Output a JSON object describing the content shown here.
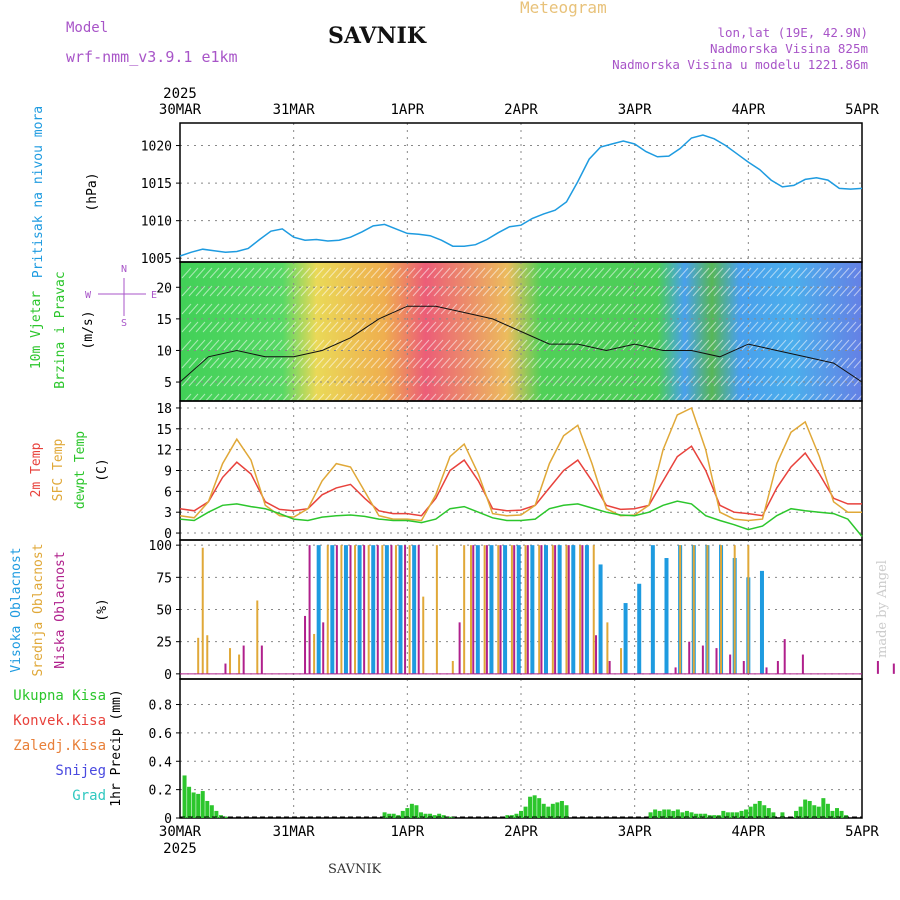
{
  "header": {
    "product": "Meteogram",
    "station": "SAVNIK",
    "model_label": "Model",
    "model_name": "wrf-nmm_v3.9.1 e1km",
    "lonlat": "lon,lat (19E, 42.9N)",
    "elevation": "Nadmorska Visina 825m",
    "elevation_model": "Nadmorska Visina u modelu 1221.86m",
    "credit": "made by Angel",
    "footer": "SAVNIK"
  },
  "time_axis": {
    "year": "2025",
    "labels": [
      "30MAR",
      "31MAR",
      "1APR",
      "2APR",
      "3APR",
      "4APR",
      "5APR"
    ]
  },
  "colors": {
    "pressure": "#1e9be0",
    "t2m": "#e8423c",
    "sfc": "#e0a838",
    "dewpt": "#2cc62c",
    "high_cloud": "#1e9be0",
    "mid_cloud": "#e0a838",
    "low_cloud": "#b0208c",
    "precip": "#2cc62c"
  },
  "chart_data": [
    {
      "type": "line",
      "name": "pressure",
      "labels": [
        "Pritisak na nivou mora",
        "(hPa)"
      ],
      "ylim": [
        1004.5,
        1023
      ],
      "yticks": [
        1005,
        1010,
        1015,
        1020
      ],
      "x": [
        0,
        0.1,
        0.2,
        0.3,
        0.4,
        0.5,
        0.6,
        0.7,
        0.8,
        0.9,
        1.0,
        1.1,
        1.2,
        1.3,
        1.4,
        1.5,
        1.6,
        1.7,
        1.8,
        1.9,
        2.0,
        2.1,
        2.2,
        2.3,
        2.4,
        2.5,
        2.6,
        2.7,
        2.8,
        2.9,
        3.0,
        3.1,
        3.2,
        3.3,
        3.4,
        3.5,
        3.6,
        3.7,
        3.8,
        3.9,
        4.0,
        4.1,
        4.2,
        4.3,
        4.4,
        4.5,
        4.6,
        4.7,
        4.8,
        4.9,
        5.0,
        5.1,
        5.2,
        5.3,
        5.4,
        5.5,
        5.6,
        5.7,
        5.8,
        5.9,
        6.0
      ],
      "values": [
        1005.3,
        1005.8,
        1006.2,
        1006.0,
        1005.8,
        1005.9,
        1006.3,
        1007.5,
        1008.6,
        1008.9,
        1007.8,
        1007.4,
        1007.5,
        1007.3,
        1007.4,
        1007.8,
        1008.5,
        1009.3,
        1009.5,
        1008.9,
        1008.3,
        1008.2,
        1008.0,
        1007.4,
        1006.6,
        1006.6,
        1006.8,
        1007.5,
        1008.4,
        1009.2,
        1009.4,
        1010.3,
        1010.9,
        1011.4,
        1012.5,
        1015.2,
        1018.2,
        1019.8,
        1020.2,
        1020.6,
        1020.2,
        1019.2,
        1018.5,
        1018.6,
        1019.6,
        1021.0,
        1021.4,
        1020.9,
        1020.0,
        1018.9,
        1017.8,
        1016.8,
        1015.4,
        1014.5,
        1014.7,
        1015.5,
        1015.7,
        1015.4,
        1014.3,
        1014.2,
        1014.3
      ]
    },
    {
      "type": "wind",
      "name": "wind",
      "labels": [
        "10m Vjetar",
        "Brzina i Pravac",
        "(m/s)"
      ],
      "legend": {
        "n": "N",
        "w": "W",
        "e": "E",
        "s": "S"
      },
      "ylim": [
        2,
        24
      ],
      "yticks": [
        5,
        10,
        15,
        20
      ],
      "x": [
        0,
        0.25,
        0.5,
        0.75,
        1.0,
        1.25,
        1.5,
        1.75,
        2.0,
        2.25,
        2.5,
        2.75,
        3.0,
        3.25,
        3.5,
        3.75,
        4.0,
        4.25,
        4.5,
        4.75,
        5.0,
        5.25,
        5.5,
        5.75,
        6.0
      ],
      "values": [
        5,
        9,
        10,
        9,
        9,
        10,
        12,
        15,
        17,
        17,
        16,
        15,
        13,
        11,
        11,
        10,
        11,
        10,
        10,
        9,
        11,
        10,
        9,
        8,
        5
      ]
    },
    {
      "type": "line",
      "name": "temperature",
      "labels": [
        "2m Temp",
        "SFC Temp",
        "dewpt Temp",
        "(C)"
      ],
      "ylim": [
        -1,
        19
      ],
      "yticks": [
        0,
        3,
        6,
        9,
        12,
        15,
        18
      ],
      "x": [
        0,
        0.125,
        0.25,
        0.375,
        0.5,
        0.625,
        0.75,
        0.875,
        1.0,
        1.125,
        1.25,
        1.375,
        1.5,
        1.625,
        1.75,
        1.875,
        2.0,
        2.125,
        2.25,
        2.375,
        2.5,
        2.625,
        2.75,
        2.875,
        3.0,
        3.125,
        3.25,
        3.375,
        3.5,
        3.625,
        3.75,
        3.875,
        4.0,
        4.125,
        4.25,
        4.375,
        4.5,
        4.625,
        4.75,
        4.875,
        5.0,
        5.125,
        5.25,
        5.375,
        5.5,
        5.625,
        5.75,
        5.875,
        6.0
      ],
      "series": [
        {
          "key": "t2m",
          "values": [
            3.5,
            3.2,
            4.5,
            8.0,
            10.2,
            8.5,
            4.5,
            3.4,
            3.2,
            3.5,
            5.5,
            6.5,
            7.0,
            5.0,
            3.2,
            2.8,
            2.8,
            2.5,
            5.0,
            9.0,
            10.5,
            7.5,
            3.5,
            3.2,
            3.3,
            4.0,
            6.5,
            9.0,
            10.5,
            7.5,
            4.0,
            3.4,
            3.5,
            4.0,
            7.5,
            11.0,
            12.5,
            9.0,
            4.0,
            3.0,
            2.8,
            2.5,
            6.5,
            9.5,
            11.5,
            8.5,
            5.0,
            4.2,
            4.2
          ]
        },
        {
          "key": "sfc",
          "values": [
            2.5,
            2.2,
            4.5,
            10.0,
            13.5,
            10.5,
            4.0,
            2.5,
            2.3,
            3.5,
            7.5,
            10.0,
            9.5,
            6.0,
            2.5,
            2.0,
            2.0,
            1.8,
            5.5,
            11.0,
            12.8,
            8.5,
            2.8,
            2.5,
            2.6,
            4.0,
            10.0,
            14.0,
            15.5,
            10.0,
            3.5,
            2.5,
            2.6,
            4.0,
            12.0,
            17.0,
            18.0,
            12.0,
            3.0,
            2.0,
            1.8,
            2.0,
            10.0,
            14.5,
            16.0,
            11.0,
            4.5,
            3.0,
            3.0
          ]
        },
        {
          "key": "dewpt",
          "values": [
            2.0,
            1.8,
            3.0,
            4.0,
            4.2,
            3.8,
            3.5,
            2.8,
            2.0,
            1.8,
            2.3,
            2.5,
            2.6,
            2.4,
            2.0,
            1.8,
            1.8,
            1.5,
            2.0,
            3.5,
            3.8,
            3.0,
            2.2,
            1.8,
            1.8,
            2.0,
            3.5,
            4.0,
            4.2,
            3.6,
            3.0,
            2.6,
            2.5,
            3.0,
            4.0,
            4.6,
            4.2,
            2.5,
            1.8,
            1.2,
            0.5,
            1.0,
            2.5,
            3.5,
            3.2,
            3.0,
            2.8,
            2.0,
            -0.5
          ]
        }
      ]
    },
    {
      "type": "bar",
      "name": "clouds",
      "labels": [
        "Visoka Oblacnost",
        "Srednja Oblacnost",
        "Niska Oblacnost",
        "(%)"
      ],
      "ylim": [
        -4,
        104
      ],
      "yticks": [
        0,
        25,
        50,
        75,
        100
      ],
      "series": [
        {
          "key": "high_cloud",
          "x": [
            1.22,
            1.34,
            1.46,
            1.58,
            1.7,
            1.82,
            1.94,
            2.06,
            2.62,
            2.74,
            2.86,
            2.98,
            3.1,
            3.22,
            3.34,
            3.46,
            3.58,
            3.7,
            3.92,
            4.04,
            4.16,
            4.28,
            4.4,
            4.52,
            4.64,
            4.76,
            4.88,
            5.0,
            5.12
          ],
          "values": [
            100,
            100,
            100,
            100,
            100,
            100,
            100,
            100,
            100,
            100,
            100,
            100,
            100,
            100,
            100,
            100,
            100,
            85,
            55,
            70,
            100,
            90,
            100,
            100,
            100,
            100,
            90,
            75,
            80
          ]
        },
        {
          "key": "mid_cloud",
          "x": [
            0.16,
            0.2,
            0.24,
            0.44,
            0.52,
            0.68,
            1.18,
            1.3,
            1.42,
            1.54,
            1.66,
            1.78,
            1.9,
            2.02,
            2.14,
            2.26,
            2.4,
            2.5,
            2.56,
            2.68,
            2.8,
            2.92,
            3.04,
            3.16,
            3.28,
            3.4,
            3.52,
            3.64,
            3.76,
            3.88,
            4.4,
            4.52,
            4.64,
            4.76,
            4.88,
            5.0
          ],
          "values": [
            28,
            98,
            30,
            20,
            15,
            57,
            31,
            100,
            100,
            100,
            100,
            100,
            100,
            100,
            60,
            100,
            10,
            100,
            100,
            100,
            100,
            100,
            100,
            100,
            100,
            100,
            100,
            100,
            40,
            20,
            100,
            100,
            100,
            100,
            100,
            100
          ]
        },
        {
          "key": "low_cloud",
          "x": [
            0.4,
            0.56,
            0.72,
            1.1,
            1.14,
            1.26,
            1.38,
            1.5,
            1.62,
            1.74,
            1.86,
            1.98,
            2.1,
            2.46,
            2.58,
            2.7,
            2.82,
            2.94,
            3.06,
            3.18,
            3.3,
            3.42,
            3.54,
            3.66,
            3.78,
            4.36,
            4.48,
            4.6,
            4.72,
            4.84,
            4.96,
            5.16,
            5.26,
            5.32,
            5.48,
            6.14,
            6.28
          ],
          "values": [
            8,
            22,
            22,
            45,
            100,
            40,
            100,
            100,
            100,
            100,
            100,
            100,
            100,
            40,
            100,
            100,
            100,
            100,
            100,
            100,
            100,
            100,
            100,
            30,
            10,
            5,
            25,
            22,
            20,
            15,
            10,
            5,
            10,
            27,
            15,
            10,
            8
          ]
        }
      ]
    },
    {
      "type": "bar",
      "name": "precipitation",
      "labels": [
        "1hr Precip (mm)",
        "Ukupna Kisa",
        "Konvek.Kisa",
        "Zaledj.Kisa",
        "Snijeg",
        "Grad"
      ],
      "ylim": [
        0,
        0.98
      ],
      "yticks": [
        0,
        0.2,
        0.4,
        0.6,
        0.8
      ],
      "x": [
        0.04,
        0.08,
        0.12,
        0.16,
        0.2,
        0.24,
        0.28,
        0.32,
        0.36,
        0.4,
        1.8,
        1.84,
        1.88,
        1.92,
        1.96,
        2.0,
        2.04,
        2.08,
        2.12,
        2.16,
        2.2,
        2.24,
        2.28,
        2.32,
        2.36,
        2.4,
        2.88,
        2.92,
        2.96,
        3.0,
        3.04,
        3.08,
        3.12,
        3.16,
        3.2,
        3.24,
        3.28,
        3.32,
        3.36,
        3.4,
        4.14,
        4.18,
        4.22,
        4.26,
        4.3,
        4.34,
        4.38,
        4.42,
        4.46,
        4.5,
        4.54,
        4.58,
        4.62,
        4.66,
        4.7,
        4.74,
        4.78,
        4.82,
        4.86,
        4.9,
        4.94,
        4.98,
        5.02,
        5.06,
        5.1,
        5.14,
        5.18,
        5.22,
        5.3,
        5.42,
        5.46,
        5.5,
        5.54,
        5.58,
        5.62,
        5.66,
        5.7,
        5.74,
        5.78,
        5.82,
        5.86
      ],
      "values": [
        0.3,
        0.22,
        0.18,
        0.17,
        0.19,
        0.12,
        0.09,
        0.05,
        0.02,
        0.01,
        0.04,
        0.03,
        0.03,
        0.02,
        0.05,
        0.07,
        0.1,
        0.09,
        0.04,
        0.03,
        0.03,
        0.02,
        0.03,
        0.02,
        0.01,
        0.01,
        0.02,
        0.02,
        0.03,
        0.05,
        0.08,
        0.15,
        0.16,
        0.14,
        0.1,
        0.08,
        0.1,
        0.11,
        0.12,
        0.09,
        0.04,
        0.06,
        0.05,
        0.06,
        0.06,
        0.05,
        0.06,
        0.04,
        0.05,
        0.04,
        0.03,
        0.03,
        0.03,
        0.02,
        0.02,
        0.02,
        0.05,
        0.04,
        0.04,
        0.04,
        0.05,
        0.06,
        0.08,
        0.1,
        0.12,
        0.09,
        0.07,
        0.04,
        0.04,
        0.05,
        0.08,
        0.13,
        0.12,
        0.09,
        0.08,
        0.14,
        0.1,
        0.05,
        0.07,
        0.05,
        0.02
      ]
    }
  ]
}
